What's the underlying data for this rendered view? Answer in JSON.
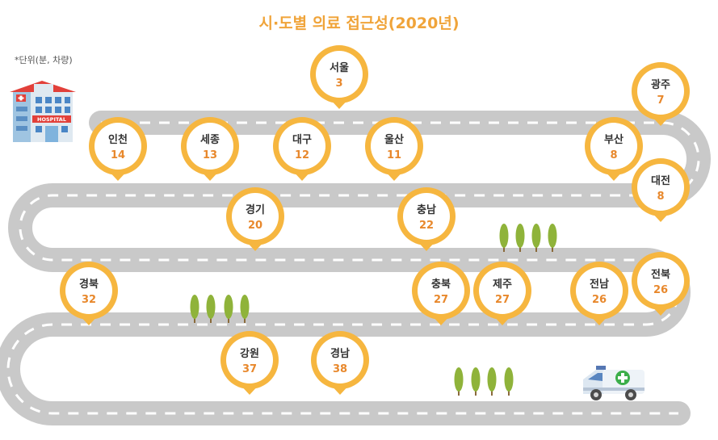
{
  "title": "시·도별 의료 접근성(2020년)",
  "unit_note": "*단위(분, 차량)",
  "hospital_sign": "HOSPITAL",
  "colors": {
    "road": "#c9c9c9",
    "lane": "#ffffff",
    "pin_ring": "#f6b63f",
    "value": "#e8882c",
    "tree": "#8fb33a"
  },
  "regions": [
    {
      "name": "서울",
      "minutes": 3
    },
    {
      "name": "광주",
      "minutes": 7
    },
    {
      "name": "인천",
      "minutes": 14
    },
    {
      "name": "세종",
      "minutes": 13
    },
    {
      "name": "대구",
      "minutes": 12
    },
    {
      "name": "울산",
      "minutes": 11
    },
    {
      "name": "부산",
      "minutes": 8
    },
    {
      "name": "대전",
      "minutes": 8
    },
    {
      "name": "경기",
      "minutes": 20
    },
    {
      "name": "충남",
      "minutes": 22
    },
    {
      "name": "경북",
      "minutes": 32
    },
    {
      "name": "충북",
      "minutes": 27
    },
    {
      "name": "제주",
      "minutes": 27
    },
    {
      "name": "전남",
      "minutes": 26
    },
    {
      "name": "전북",
      "minutes": 26
    },
    {
      "name": "강원",
      "minutes": 37
    },
    {
      "name": "경남",
      "minutes": 38
    }
  ]
}
